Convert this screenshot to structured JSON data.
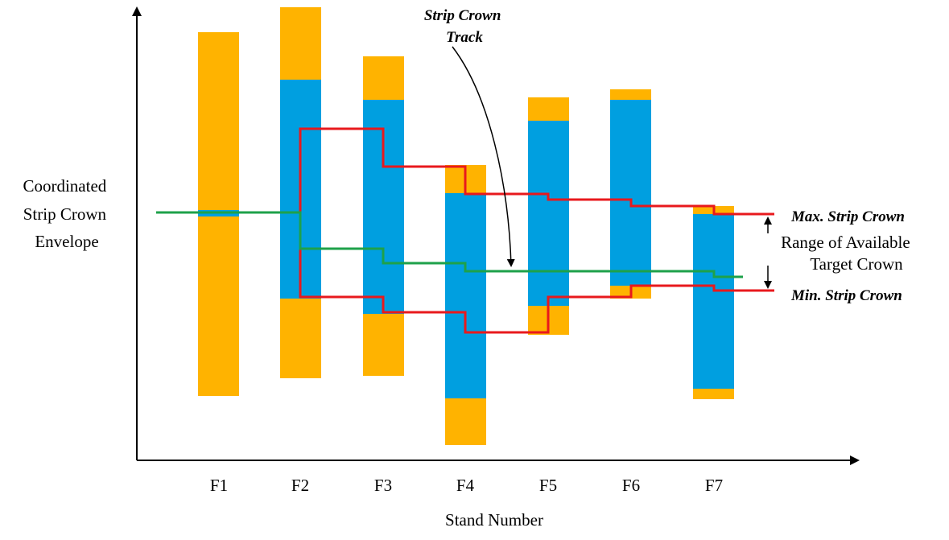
{
  "colors": {
    "adjustable_range": "#FFB300",
    "envelope": "#009FE0",
    "crown_limit": "#E8191D",
    "crown_track": "#1EA14A",
    "axis": "#000000"
  },
  "labels": {
    "y_axis": [
      "Coordinated",
      "Strip Crown",
      "Envelope"
    ],
    "x_axis": "Stand Number",
    "track": [
      "Strip Crown",
      "Track"
    ],
    "max_crown": "Max. Strip Crown",
    "min_crown": "Min. Strip Crown",
    "range": [
      "Range of Available",
      "Target Crown"
    ]
  },
  "stands": [
    "F1",
    "F2",
    "F3",
    "F4",
    "F5",
    "F6",
    "F7"
  ]
}
